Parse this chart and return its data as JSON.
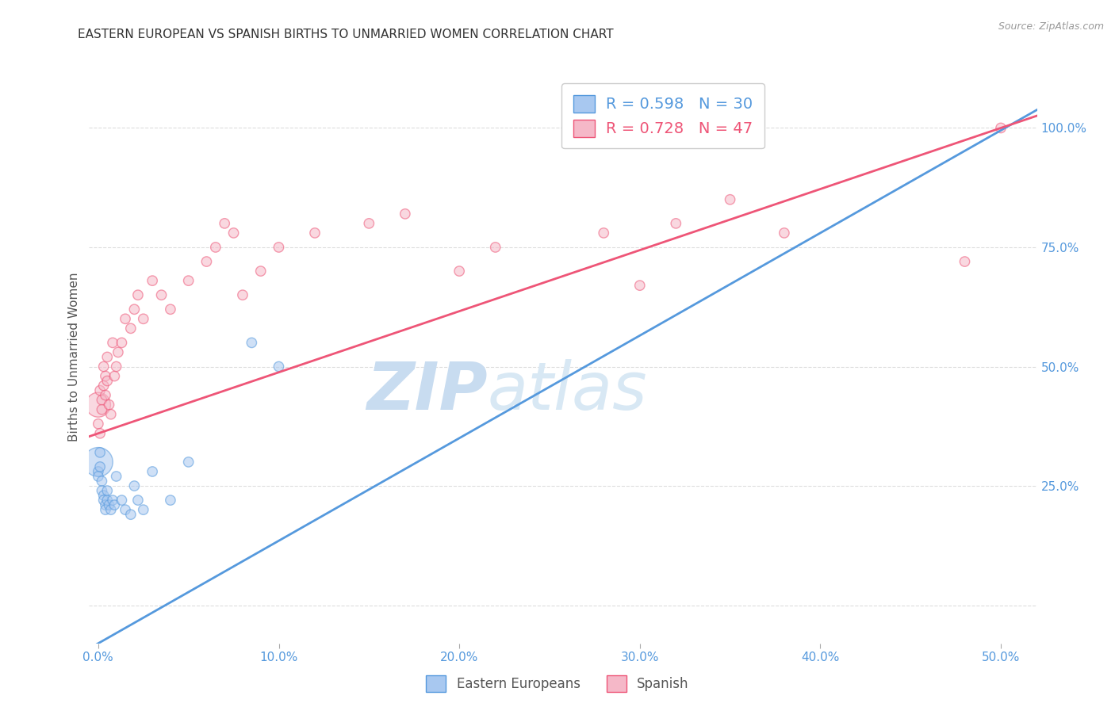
{
  "title": "EASTERN EUROPEAN VS SPANISH BIRTHS TO UNMARRIED WOMEN CORRELATION CHART",
  "source": "Source: ZipAtlas.com",
  "ylabel": "Births to Unmarried Women",
  "x_ticks": [
    0.0,
    0.1,
    0.2,
    0.3,
    0.4,
    0.5
  ],
  "x_tick_labels": [
    "0.0%",
    "10.0%",
    "20.0%",
    "30.0%",
    "40.0%",
    "50.0%"
  ],
  "y_ticks": [
    0.0,
    0.25,
    0.5,
    0.75,
    1.0
  ],
  "y_tick_labels": [
    "",
    "25.0%",
    "50.0%",
    "75.0%",
    "100.0%"
  ],
  "xlim": [
    -0.005,
    0.52
  ],
  "ylim": [
    -0.08,
    1.12
  ],
  "eastern_european_R": 0.598,
  "eastern_european_N": 30,
  "spanish_R": 0.728,
  "spanish_N": 47,
  "blue_color": "#A8C8F0",
  "pink_color": "#F5B8C8",
  "blue_line_color": "#5599DD",
  "pink_line_color": "#EE5577",
  "watermark_zip_color": "#C8DCF0",
  "watermark_atlas_color": "#C8DCF0",
  "tick_label_color": "#5599DD",
  "grid_color": "#DDDDDD",
  "title_color": "#333333",
  "blue_line_intercept": -0.08,
  "blue_line_slope": 2.15,
  "pink_line_intercept": 0.36,
  "pink_line_slope": 1.28,
  "ee_x": [
    0.0,
    0.0,
    0.0,
    0.001,
    0.001,
    0.002,
    0.002,
    0.003,
    0.003,
    0.004,
    0.004,
    0.005,
    0.005,
    0.006,
    0.007,
    0.008,
    0.009,
    0.01,
    0.013,
    0.015,
    0.018,
    0.02,
    0.022,
    0.025,
    0.03,
    0.04,
    0.05,
    0.085,
    0.1,
    0.35
  ],
  "ee_y": [
    0.3,
    0.28,
    0.27,
    0.32,
    0.29,
    0.26,
    0.24,
    0.23,
    0.22,
    0.21,
    0.2,
    0.24,
    0.22,
    0.21,
    0.2,
    0.22,
    0.21,
    0.27,
    0.22,
    0.2,
    0.19,
    0.25,
    0.22,
    0.2,
    0.28,
    0.22,
    0.3,
    0.55,
    0.5,
    0.99
  ],
  "ee_sizes": [
    700,
    80,
    80,
    80,
    80,
    80,
    80,
    80,
    80,
    80,
    80,
    80,
    80,
    80,
    80,
    80,
    80,
    80,
    80,
    80,
    80,
    80,
    80,
    80,
    80,
    80,
    80,
    80,
    80,
    80
  ],
  "sp_x": [
    0.0,
    0.0,
    0.001,
    0.001,
    0.002,
    0.002,
    0.003,
    0.003,
    0.004,
    0.004,
    0.005,
    0.005,
    0.006,
    0.007,
    0.008,
    0.009,
    0.01,
    0.011,
    0.013,
    0.015,
    0.018,
    0.02,
    0.022,
    0.025,
    0.03,
    0.035,
    0.04,
    0.05,
    0.06,
    0.065,
    0.07,
    0.075,
    0.08,
    0.09,
    0.1,
    0.12,
    0.15,
    0.17,
    0.2,
    0.22,
    0.28,
    0.3,
    0.32,
    0.35,
    0.38,
    0.48,
    0.5
  ],
  "sp_y": [
    0.42,
    0.38,
    0.45,
    0.36,
    0.43,
    0.41,
    0.5,
    0.46,
    0.48,
    0.44,
    0.52,
    0.47,
    0.42,
    0.4,
    0.55,
    0.48,
    0.5,
    0.53,
    0.55,
    0.6,
    0.58,
    0.62,
    0.65,
    0.6,
    0.68,
    0.65,
    0.62,
    0.68,
    0.72,
    0.75,
    0.8,
    0.78,
    0.65,
    0.7,
    0.75,
    0.78,
    0.8,
    0.82,
    0.7,
    0.75,
    0.78,
    0.67,
    0.8,
    0.85,
    0.78,
    0.72,
    1.0
  ],
  "sp_sizes": [
    500,
    80,
    80,
    80,
    80,
    80,
    80,
    80,
    80,
    80,
    80,
    80,
    80,
    80,
    80,
    80,
    80,
    80,
    80,
    80,
    80,
    80,
    80,
    80,
    80,
    80,
    80,
    80,
    80,
    80,
    80,
    80,
    80,
    80,
    80,
    80,
    80,
    80,
    80,
    80,
    80,
    80,
    80,
    80,
    80,
    80,
    80
  ]
}
